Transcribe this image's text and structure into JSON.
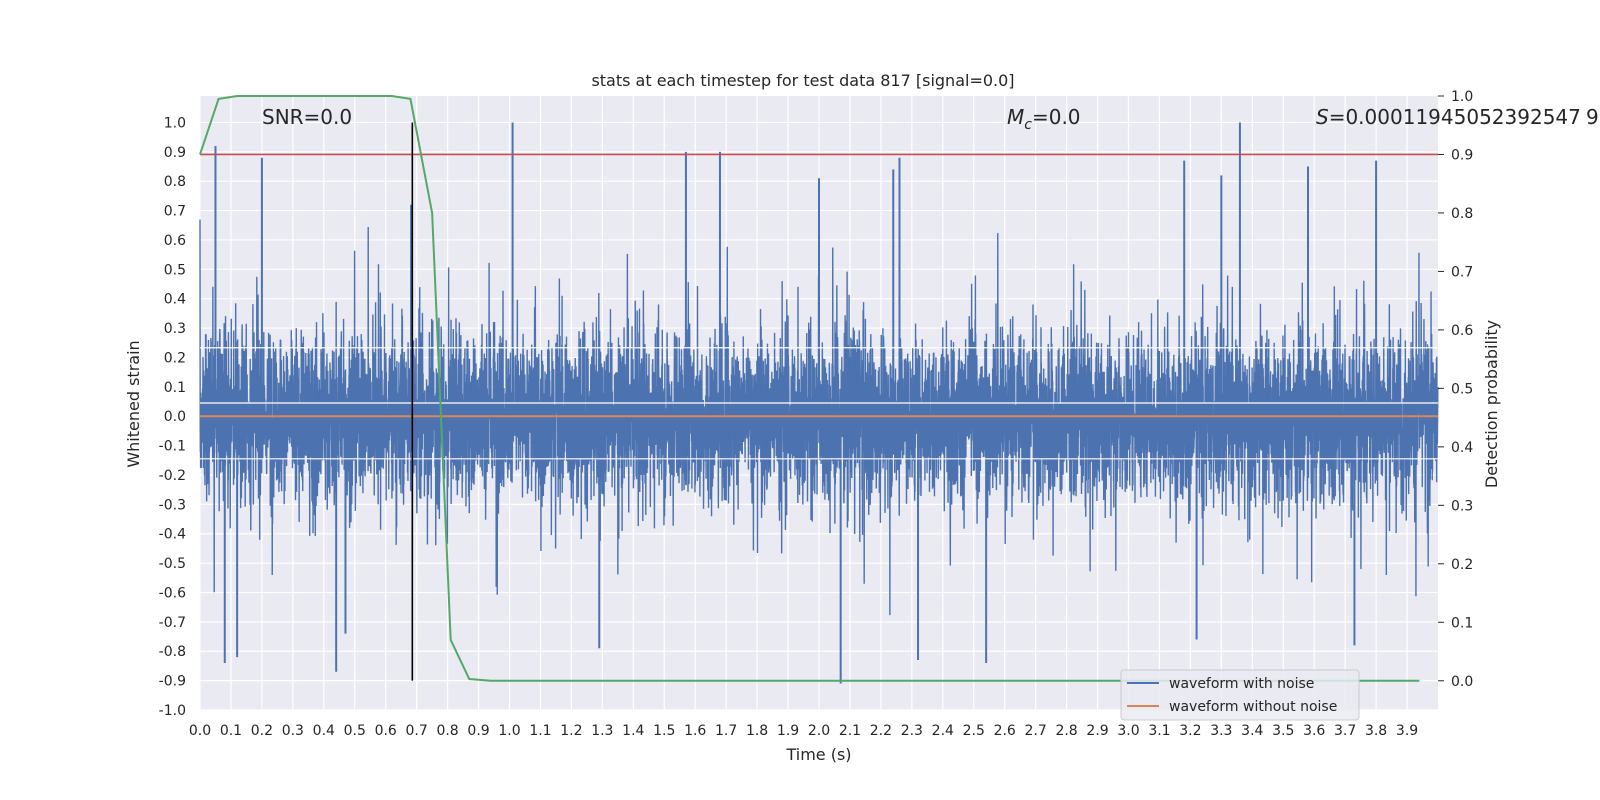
{
  "chart_data": {
    "type": "line",
    "title": "stats at each timestep for test data 817 [signal=0.0]",
    "xlabel": "Time (s)",
    "ylabel": "Whitened strain",
    "y2label": "Detection probability",
    "xlim": [
      0.0,
      4.0
    ],
    "ylim": [
      -1.0,
      1.09
    ],
    "y2lim": [
      -0.05,
      1.0
    ],
    "xticks": [
      "0.0",
      "0.1",
      "0.2",
      "0.3",
      "0.4",
      "0.5",
      "0.6",
      "0.7",
      "0.8",
      "0.9",
      "1.0",
      "1.1",
      "1.2",
      "1.3",
      "1.4",
      "1.5",
      "1.6",
      "1.7",
      "1.8",
      "1.9",
      "2.0",
      "2.1",
      "2.2",
      "2.3",
      "2.4",
      "2.5",
      "2.6",
      "2.7",
      "2.8",
      "2.9",
      "3.0",
      "3.1",
      "3.2",
      "3.3",
      "3.4",
      "3.5",
      "3.6",
      "3.7",
      "3.8",
      "3.9"
    ],
    "yticks": [
      "1.0",
      "0.9",
      "0.8",
      "0.7",
      "0.6",
      "0.5",
      "0.4",
      "0.3",
      "0.2",
      "0.1",
      "0.0",
      "-0.1",
      "-0.2",
      "-0.3",
      "-0.4",
      "-0.5",
      "-0.6",
      "-0.7",
      "-0.8",
      "-0.9",
      "-1.0"
    ],
    "y2ticks": [
      "1.0",
      "0.9",
      "0.8",
      "0.7",
      "0.6",
      "0.5",
      "0.4",
      "0.3",
      "0.2",
      "0.1",
      "0.0"
    ],
    "annotations": {
      "snr": "SNR=0.0",
      "mc_symbol": "M",
      "mc_sub": "c",
      "mc_value": "=0.0",
      "s_symbol": "S",
      "s_value": "=0.00011945052392547",
      "s_value_trailing": "9"
    },
    "series": [
      {
        "name": "waveform with noise",
        "axis": "left",
        "color": "#4c72b0",
        "sample_rate": 2048,
        "amplitude": 0.35,
        "peaks": [
          {
            "t": 0.05,
            "y": 0.92
          },
          {
            "t": 0.2,
            "y": 0.88
          },
          {
            "t": 1.01,
            "y": 1.0
          },
          {
            "t": 1.57,
            "y": 0.9
          },
          {
            "t": 1.68,
            "y": 0.9
          },
          {
            "t": 2.0,
            "y": 0.81
          },
          {
            "t": 2.24,
            "y": 0.84
          },
          {
            "t": 2.26,
            "y": 0.88
          },
          {
            "t": 3.18,
            "y": 0.87
          },
          {
            "t": 3.3,
            "y": 0.82
          },
          {
            "t": 3.36,
            "y": 1.0
          },
          {
            "t": 3.58,
            "y": 0.85
          },
          {
            "t": 3.8,
            "y": 0.87
          },
          {
            "t": 0.08,
            "y": -0.84
          },
          {
            "t": 0.12,
            "y": -0.82
          },
          {
            "t": 0.44,
            "y": -0.87
          },
          {
            "t": 0.47,
            "y": -0.74
          },
          {
            "t": 1.29,
            "y": -0.79
          },
          {
            "t": 2.07,
            "y": -0.91
          },
          {
            "t": 2.32,
            "y": -0.83
          },
          {
            "t": 2.54,
            "y": -0.84
          },
          {
            "t": 3.22,
            "y": -0.76
          },
          {
            "t": 3.73,
            "y": -0.78
          }
        ]
      },
      {
        "name": "waveform without noise",
        "axis": "left",
        "color": "#dd8452",
        "x": [
          0.0,
          4.0
        ],
        "y": [
          0.0,
          0.0
        ]
      },
      {
        "name": "detection probability",
        "axis": "right",
        "color": "#55a868",
        "x": [
          0.0,
          0.06,
          0.12,
          0.18,
          0.62,
          0.68,
          0.75,
          0.81,
          0.87,
          0.94,
          1.0,
          3.94
        ],
        "y": [
          0.9,
          0.995,
          1.0,
          1.0,
          1.0,
          0.995,
          0.8,
          0.07,
          0.003,
          0.0,
          0.0,
          0.0
        ]
      }
    ],
    "threshold": {
      "axis": "right",
      "value": 0.9,
      "color": "#c44e52"
    },
    "vline": {
      "x": 0.686,
      "y_range": [
        -0.9,
        1.0
      ],
      "color": "#000000"
    },
    "horizontal_white_lines": [
      0.233,
      0.045,
      -0.145
    ],
    "legend": {
      "placement": "lower-right",
      "entries": [
        {
          "label": "waveform with noise",
          "color": "#4c72b0"
        },
        {
          "label": "waveform without noise",
          "color": "#dd8452"
        }
      ]
    },
    "grid": true
  }
}
